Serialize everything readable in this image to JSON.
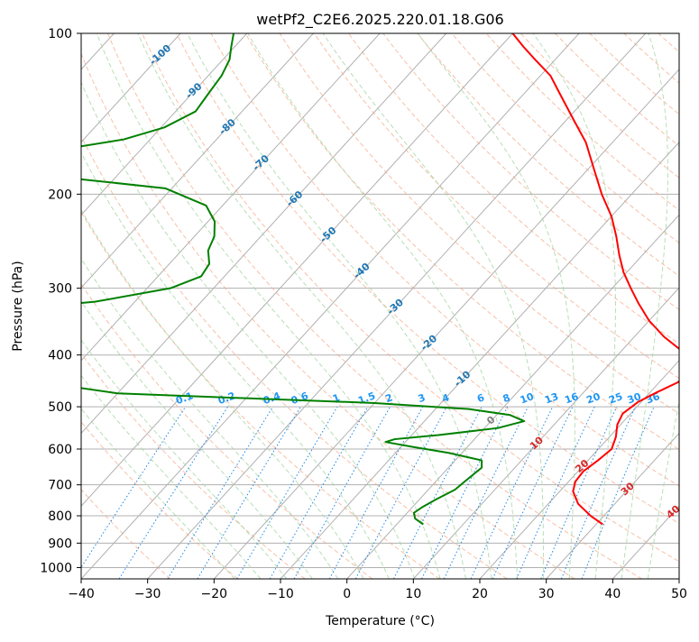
{
  "chart_data": {
    "type": "line",
    "chart_kind": "skew-T log-P diagram",
    "title": "wetPf2_C2E6.2025.220.01.18.G06",
    "xlabel": "Temperature (°C)",
    "ylabel": "Pressure (hPa)",
    "xlim": [
      -40,
      50
    ],
    "ylim": [
      1050,
      100
    ],
    "y_scale": "log",
    "x_ticks": [
      -40,
      -30,
      -20,
      -10,
      0,
      10,
      20,
      30,
      40,
      50
    ],
    "x_tick_labels": [
      "−40",
      "−30",
      "−20",
      "−10",
      "0",
      "10",
      "20",
      "30",
      "40",
      "50"
    ],
    "y_ticks": [
      1000,
      900,
      800,
      700,
      600,
      500,
      400,
      300,
      200,
      100
    ],
    "y_tick_labels": [
      "1000",
      "900",
      "800",
      "700",
      "600",
      "500",
      "400",
      "300",
      "200",
      "100"
    ],
    "grid": true,
    "background_lines": {
      "isotherms_color": "#b0b0b0",
      "dry_adiabats_color": "#f4a582",
      "moist_adiabats_color": "#a6d6a6",
      "mixing_ratio_color": "#1e88e5"
    },
    "isotherm_labels": [
      {
        "t": -100,
        "text": "-100"
      },
      {
        "t": -90,
        "text": "-90"
      },
      {
        "t": -80,
        "text": "-80"
      },
      {
        "t": -70,
        "text": "-70"
      },
      {
        "t": -60,
        "text": "-60"
      },
      {
        "t": -50,
        "text": "-50"
      },
      {
        "t": -40,
        "text": "-40"
      },
      {
        "t": -30,
        "text": "-30"
      },
      {
        "t": -20,
        "text": "-20"
      },
      {
        "t": -10,
        "text": "-10"
      },
      {
        "t": 0,
        "text": "0"
      },
      {
        "t": 10,
        "text": "10"
      },
      {
        "t": 20,
        "text": "20"
      },
      {
        "t": 30,
        "text": "30"
      },
      {
        "t": 40,
        "text": "40"
      }
    ],
    "isotherm_label_colors": {
      "negative": "#1f77b4",
      "zero": "#808080",
      "positive": "#d62728"
    },
    "mixing_ratio_labels": [
      "0.1",
      "0.2",
      "0.4",
      "0.6",
      "1",
      "1.5",
      "2",
      "3",
      "4",
      "6",
      "8",
      "10",
      "13",
      "16",
      "20",
      "25",
      "30",
      "36"
    ],
    "mixing_ratio_values": [
      0.1,
      0.2,
      0.4,
      0.6,
      1,
      1.5,
      2,
      3,
      4,
      6,
      8,
      10,
      13,
      16,
      20,
      25,
      30,
      36
    ],
    "series": [
      {
        "role": "temperature",
        "color": "#ff0000",
        "points": [
          [
            830,
            31.0
          ],
          [
            800,
            28.0
          ],
          [
            760,
            24.5
          ],
          [
            720,
            22.0
          ],
          [
            690,
            21.0
          ],
          [
            660,
            20.8
          ],
          [
            630,
            21.5
          ],
          [
            600,
            22.0
          ],
          [
            570,
            21.0
          ],
          [
            540,
            19.5
          ],
          [
            515,
            18.8
          ],
          [
            490,
            19.5
          ],
          [
            470,
            21.0
          ],
          [
            450,
            22.8
          ],
          [
            430,
            23.0
          ],
          [
            410,
            21.8
          ],
          [
            390,
            18.5
          ],
          [
            370,
            14.5
          ],
          [
            345,
            10.0
          ],
          [
            320,
            6.0
          ],
          [
            300,
            2.8
          ],
          [
            280,
            -0.5
          ],
          [
            260,
            -3.5
          ],
          [
            240,
            -6.5
          ],
          [
            220,
            -10.0
          ],
          [
            200,
            -14.5
          ],
          [
            180,
            -19.0
          ],
          [
            160,
            -24.0
          ],
          [
            145,
            -29.0
          ],
          [
            130,
            -34.5
          ],
          [
            120,
            -38.5
          ],
          [
            112,
            -43.0
          ],
          [
            106,
            -46.5
          ],
          [
            100,
            -50.0
          ]
        ]
      },
      {
        "role": "dewpoint",
        "color": "#008000",
        "points": [
          [
            830,
            4.0
          ],
          [
            810,
            2.0
          ],
          [
            790,
            1.0
          ],
          [
            770,
            1.5
          ],
          [
            745,
            2.5
          ],
          [
            715,
            4.0
          ],
          [
            680,
            4.5
          ],
          [
            650,
            5.0
          ],
          [
            630,
            4.0
          ],
          [
            610,
            -2.0
          ],
          [
            595,
            -8.0
          ],
          [
            582,
            -13.0
          ],
          [
            575,
            -12.0
          ],
          [
            565,
            -6.0
          ],
          [
            548,
            2.0
          ],
          [
            532,
            5.0
          ],
          [
            518,
            2.0
          ],
          [
            505,
            -5.0
          ],
          [
            492,
            -20.0
          ],
          [
            482,
            -40.0
          ],
          [
            472,
            -60.0
          ],
          [
            460,
            -67.0
          ],
          [
            380,
            -80.0
          ],
          [
            350,
            -80.5
          ],
          [
            325,
            -84.0
          ],
          [
            318,
            -76.0
          ],
          [
            300,
            -66.5
          ],
          [
            285,
            -63.5
          ],
          [
            270,
            -64.0
          ],
          [
            255,
            -66.0
          ],
          [
            240,
            -67.0
          ],
          [
            225,
            -69.0
          ],
          [
            210,
            -72.5
          ],
          [
            195,
            -81.0
          ],
          [
            187,
            -96.0
          ],
          [
            175,
            -101.5
          ],
          [
            165,
            -102.0
          ],
          [
            158,
            -94.0
          ],
          [
            150,
            -89.5
          ],
          [
            140,
            -87.0
          ],
          [
            130,
            -87.5
          ],
          [
            120,
            -88.0
          ],
          [
            112,
            -89.0
          ],
          [
            106,
            -90.5
          ],
          [
            100,
            -92.0
          ]
        ]
      }
    ]
  }
}
